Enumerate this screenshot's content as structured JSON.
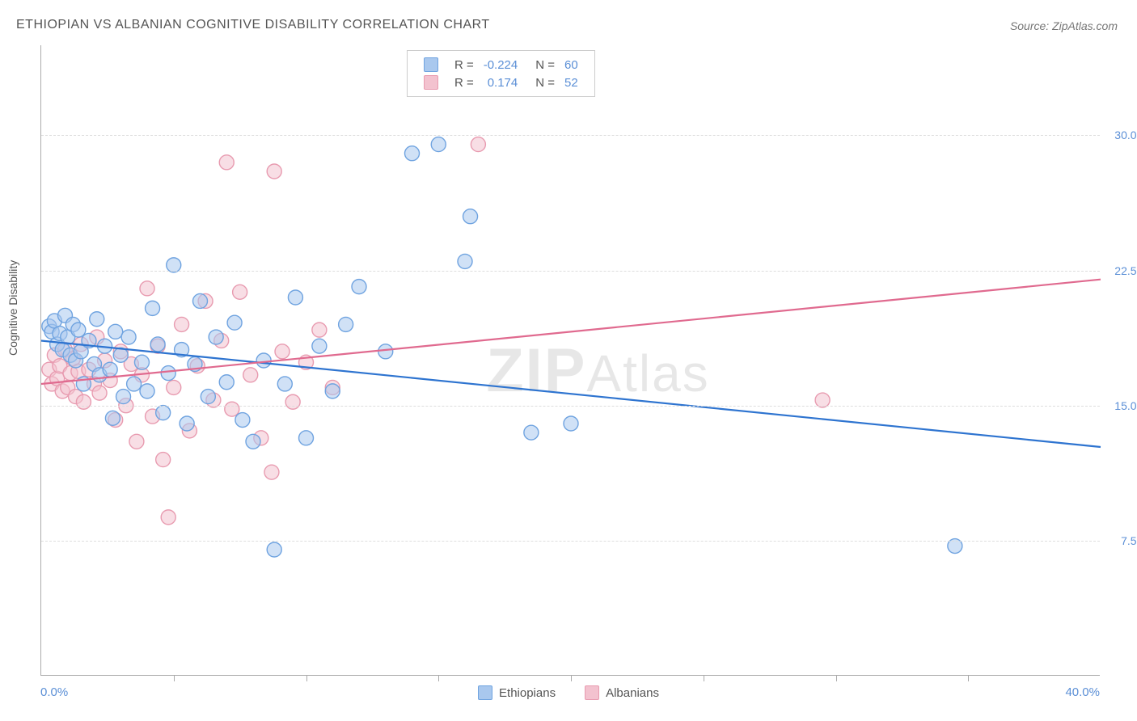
{
  "title": "ETHIOPIAN VS ALBANIAN COGNITIVE DISABILITY CORRELATION CHART",
  "source": "Source: ZipAtlas.com",
  "y_axis_label": "Cognitive Disability",
  "watermark": {
    "prefix": "ZIP",
    "suffix": "Atlas"
  },
  "colors": {
    "series_a_stroke": "#6fa3e0",
    "series_a_fill": "#a9c8ee",
    "series_a_line": "#2e74d0",
    "series_b_stroke": "#e89bb0",
    "series_b_fill": "#f3c2cf",
    "series_b_line": "#e06a8f",
    "grid": "#dddddd",
    "axis": "#aaaaaa",
    "tick_text": "#5b8fd6",
    "text": "#555555"
  },
  "chart": {
    "type": "scatter-with-regression",
    "x_domain": [
      0,
      40
    ],
    "y_domain": [
      0,
      35
    ],
    "x_min_label": "0.0%",
    "x_max_label": "40.0%",
    "x_ticks_at": [
      5,
      10,
      15,
      20,
      25,
      30,
      35
    ],
    "y_ticks": [
      {
        "value": 7.5,
        "label": "7.5%"
      },
      {
        "value": 15.0,
        "label": "15.0%"
      },
      {
        "value": 22.5,
        "label": "22.5%"
      },
      {
        "value": 30.0,
        "label": "30.0%"
      }
    ],
    "marker_radius": 9,
    "marker_opacity": 0.55,
    "line_width": 2.2
  },
  "series": [
    {
      "key": "ethiopians",
      "label": "Ethiopians",
      "R": "-0.224",
      "N": "60",
      "regression": {
        "x1": 0,
        "y1": 18.6,
        "x2": 40,
        "y2": 12.7
      },
      "points": [
        [
          0.3,
          19.4
        ],
        [
          0.4,
          19.1
        ],
        [
          0.5,
          19.7
        ],
        [
          0.6,
          18.4
        ],
        [
          0.7,
          19.0
        ],
        [
          0.8,
          18.1
        ],
        [
          0.9,
          20.0
        ],
        [
          1.0,
          18.8
        ],
        [
          1.1,
          17.8
        ],
        [
          1.2,
          19.5
        ],
        [
          1.3,
          17.5
        ],
        [
          1.4,
          19.2
        ],
        [
          1.5,
          18.0
        ],
        [
          1.6,
          16.2
        ],
        [
          1.8,
          18.6
        ],
        [
          2.0,
          17.3
        ],
        [
          2.1,
          19.8
        ],
        [
          2.2,
          16.7
        ],
        [
          2.4,
          18.3
        ],
        [
          2.6,
          17.0
        ],
        [
          2.7,
          14.3
        ],
        [
          2.8,
          19.1
        ],
        [
          3.0,
          17.8
        ],
        [
          3.1,
          15.5
        ],
        [
          3.3,
          18.8
        ],
        [
          3.5,
          16.2
        ],
        [
          3.8,
          17.4
        ],
        [
          4.0,
          15.8
        ],
        [
          4.2,
          20.4
        ],
        [
          4.4,
          18.4
        ],
        [
          4.6,
          14.6
        ],
        [
          4.8,
          16.8
        ],
        [
          5.0,
          22.8
        ],
        [
          5.3,
          18.1
        ],
        [
          5.5,
          14.0
        ],
        [
          5.8,
          17.3
        ],
        [
          6.0,
          20.8
        ],
        [
          6.3,
          15.5
        ],
        [
          6.6,
          18.8
        ],
        [
          7.0,
          16.3
        ],
        [
          7.3,
          19.6
        ],
        [
          7.6,
          14.2
        ],
        [
          8.0,
          13.0
        ],
        [
          8.4,
          17.5
        ],
        [
          8.8,
          7.0
        ],
        [
          9.2,
          16.2
        ],
        [
          9.6,
          21.0
        ],
        [
          10.0,
          13.2
        ],
        [
          10.5,
          18.3
        ],
        [
          11.0,
          15.8
        ],
        [
          11.5,
          19.5
        ],
        [
          12.0,
          21.6
        ],
        [
          13.0,
          18.0
        ],
        [
          14.0,
          29.0
        ],
        [
          15.0,
          29.5
        ],
        [
          16.0,
          23.0
        ],
        [
          16.2,
          25.5
        ],
        [
          18.5,
          13.5
        ],
        [
          20.0,
          14.0
        ],
        [
          34.5,
          7.2
        ]
      ]
    },
    {
      "key": "albanians",
      "label": "Albanians",
      "R": "0.174",
      "N": "52",
      "regression": {
        "x1": 0,
        "y1": 16.2,
        "x2": 40,
        "y2": 22.0
      },
      "points": [
        [
          0.3,
          17.0
        ],
        [
          0.4,
          16.2
        ],
        [
          0.5,
          17.8
        ],
        [
          0.6,
          16.5
        ],
        [
          0.7,
          17.2
        ],
        [
          0.8,
          15.8
        ],
        [
          0.9,
          18.1
        ],
        [
          1.0,
          16.0
        ],
        [
          1.1,
          16.8
        ],
        [
          1.2,
          17.6
        ],
        [
          1.3,
          15.5
        ],
        [
          1.4,
          16.9
        ],
        [
          1.5,
          18.4
        ],
        [
          1.6,
          15.2
        ],
        [
          1.8,
          17.0
        ],
        [
          2.0,
          16.2
        ],
        [
          2.1,
          18.8
        ],
        [
          2.2,
          15.7
        ],
        [
          2.4,
          17.5
        ],
        [
          2.6,
          16.4
        ],
        [
          2.8,
          14.2
        ],
        [
          3.0,
          18.0
        ],
        [
          3.2,
          15.0
        ],
        [
          3.4,
          17.3
        ],
        [
          3.6,
          13.0
        ],
        [
          3.8,
          16.7
        ],
        [
          4.0,
          21.5
        ],
        [
          4.2,
          14.4
        ],
        [
          4.4,
          18.3
        ],
        [
          4.6,
          12.0
        ],
        [
          4.8,
          8.8
        ],
        [
          5.0,
          16.0
        ],
        [
          5.3,
          19.5
        ],
        [
          5.6,
          13.6
        ],
        [
          5.9,
          17.2
        ],
        [
          6.2,
          20.8
        ],
        [
          6.5,
          15.3
        ],
        [
          6.8,
          18.6
        ],
        [
          7.2,
          14.8
        ],
        [
          7.5,
          21.3
        ],
        [
          7.0,
          28.5
        ],
        [
          7.9,
          16.7
        ],
        [
          8.3,
          13.2
        ],
        [
          8.7,
          11.3
        ],
        [
          8.8,
          28.0
        ],
        [
          9.1,
          18.0
        ],
        [
          9.5,
          15.2
        ],
        [
          10.0,
          17.4
        ],
        [
          10.5,
          19.2
        ],
        [
          11.0,
          16.0
        ],
        [
          16.5,
          29.5
        ],
        [
          29.5,
          15.3
        ]
      ]
    }
  ],
  "legend_bottom": [
    {
      "series": "ethiopians"
    },
    {
      "series": "albanians"
    }
  ],
  "legend_top": {
    "rows": [
      {
        "series": "ethiopians"
      },
      {
        "series": "albanians"
      }
    ],
    "R_label": "R =",
    "N_label": "N ="
  }
}
